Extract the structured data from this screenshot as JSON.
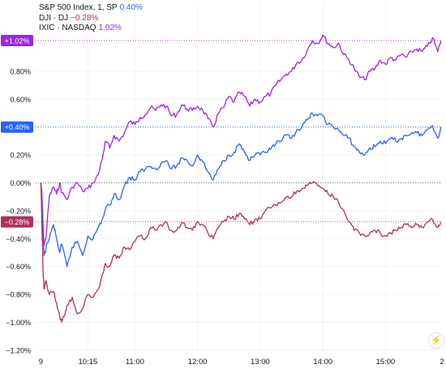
{
  "legend": [
    {
      "label": "S&P 500 Index, 1, SP",
      "value": "0.40%",
      "color": "#2962ff"
    },
    {
      "label": "DJI · DJ",
      "value": "−0.28%",
      "color": "#b0305e"
    },
    {
      "label": "IXIC · NASDAQ",
      "value": "1.02%",
      "color": "#9c27e0"
    }
  ],
  "badges": {
    "spx": "+0.40%",
    "dji": "−0.28%",
    "ixic": "+1.02%"
  },
  "zap_icon": "⚡",
  "chart_data": {
    "type": "line",
    "y_ticks": [
      "1.00%",
      "0.80%",
      "0.60%",
      "0.40%",
      "0.20%",
      "0.00%",
      "−0.20%",
      "−0.40%",
      "−0.60%",
      "−0.80%",
      "−1.00%",
      "−1.20%"
    ],
    "y_tick_values": [
      1.0,
      0.8,
      0.6,
      0.4,
      0.2,
      0.0,
      -0.2,
      -0.4,
      -0.6,
      -0.8,
      -1.0,
      -1.2
    ],
    "x_ticks": [
      "9",
      "10:15",
      "11:00",
      "12:00",
      "13:00",
      "14:00",
      "15:00",
      "2"
    ],
    "x_tick_minutes": [
      570,
      615,
      660,
      720,
      780,
      840,
      900,
      954
    ],
    "xlim_minutes": [
      565,
      954
    ],
    "ylim": [
      -1.22,
      1.22
    ],
    "baseline": 0.0,
    "grid": true,
    "series": [
      {
        "name": "IXIC · NASDAQ",
        "color": "#9c27e0",
        "last_value": 1.02,
        "x_minutes": [
          570,
          571,
          572,
          573,
          575,
          578,
          582,
          585,
          588,
          590,
          595,
          600,
          605,
          610,
          615,
          620,
          625,
          630,
          632,
          636,
          640,
          645,
          650,
          655,
          660,
          665,
          670,
          675,
          680,
          685,
          690,
          695,
          700,
          705,
          710,
          715,
          720,
          725,
          730,
          735,
          740,
          745,
          750,
          755,
          760,
          765,
          770,
          775,
          780,
          785,
          790,
          795,
          800,
          805,
          810,
          815,
          820,
          825,
          830,
          835,
          840,
          845,
          850,
          855,
          860,
          865,
          870,
          875,
          880,
          885,
          890,
          895,
          900,
          905,
          910,
          915,
          920,
          925,
          930,
          935,
          940,
          945,
          950,
          953
        ],
        "y": [
          0.0,
          -0.08,
          -0.28,
          -0.45,
          -0.38,
          -0.1,
          -0.03,
          -0.08,
          0.0,
          -0.07,
          -0.12,
          -0.03,
          0.0,
          -0.06,
          -0.04,
          0.0,
          0.06,
          0.22,
          0.3,
          0.25,
          0.34,
          0.3,
          0.36,
          0.44,
          0.42,
          0.47,
          0.49,
          0.54,
          0.52,
          0.56,
          0.55,
          0.48,
          0.49,
          0.56,
          0.53,
          0.52,
          0.55,
          0.52,
          0.46,
          0.4,
          0.5,
          0.54,
          0.62,
          0.58,
          0.65,
          0.62,
          0.55,
          0.6,
          0.58,
          0.62,
          0.64,
          0.7,
          0.74,
          0.78,
          0.8,
          0.86,
          0.88,
          0.95,
          1.02,
          1.0,
          1.06,
          1.0,
          0.97,
          1.0,
          0.92,
          0.88,
          0.82,
          0.76,
          0.74,
          0.8,
          0.82,
          0.88,
          0.85,
          0.9,
          0.88,
          0.92,
          0.9,
          0.94,
          0.96,
          0.94,
          0.98,
          1.04,
          0.94,
          1.02
        ]
      },
      {
        "name": "S&P 500 Index, 1, SP",
        "color": "#2962ff",
        "last_value": 0.4,
        "x_minutes": [
          570,
          571,
          572,
          573,
          575,
          578,
          582,
          585,
          588,
          590,
          595,
          600,
          605,
          610,
          615,
          620,
          625,
          630,
          632,
          636,
          640,
          645,
          650,
          655,
          660,
          665,
          670,
          675,
          680,
          685,
          690,
          695,
          700,
          705,
          710,
          715,
          720,
          725,
          730,
          735,
          740,
          745,
          750,
          755,
          760,
          765,
          770,
          775,
          780,
          785,
          790,
          795,
          800,
          805,
          810,
          815,
          820,
          825,
          830,
          835,
          840,
          845,
          850,
          855,
          860,
          865,
          870,
          875,
          880,
          885,
          890,
          895,
          900,
          905,
          910,
          915,
          920,
          925,
          930,
          935,
          940,
          945,
          950,
          953
        ],
        "y": [
          0.0,
          -0.15,
          -0.38,
          -0.52,
          -0.46,
          -0.4,
          -0.3,
          -0.4,
          -0.5,
          -0.44,
          -0.6,
          -0.46,
          -0.42,
          -0.52,
          -0.38,
          -0.4,
          -0.32,
          -0.24,
          -0.18,
          -0.16,
          -0.08,
          -0.12,
          -0.02,
          0.04,
          0.02,
          0.08,
          0.1,
          0.12,
          0.1,
          0.14,
          0.16,
          0.1,
          0.12,
          0.18,
          0.16,
          0.12,
          0.2,
          0.15,
          0.08,
          0.02,
          0.1,
          0.16,
          0.2,
          0.22,
          0.28,
          0.22,
          0.16,
          0.2,
          0.2,
          0.22,
          0.24,
          0.28,
          0.3,
          0.34,
          0.32,
          0.38,
          0.4,
          0.45,
          0.5,
          0.48,
          0.48,
          0.42,
          0.4,
          0.38,
          0.34,
          0.32,
          0.26,
          0.22,
          0.2,
          0.25,
          0.26,
          0.3,
          0.28,
          0.32,
          0.3,
          0.32,
          0.34,
          0.36,
          0.36,
          0.34,
          0.38,
          0.41,
          0.32,
          0.4
        ]
      },
      {
        "name": "DJI · DJ",
        "color": "#b0305e",
        "last_value": -0.28,
        "x_minutes": [
          570,
          571,
          572,
          573,
          575,
          578,
          582,
          585,
          588,
          590,
          595,
          600,
          605,
          610,
          615,
          620,
          625,
          630,
          632,
          636,
          640,
          645,
          650,
          655,
          660,
          665,
          670,
          675,
          680,
          685,
          690,
          695,
          700,
          705,
          710,
          715,
          720,
          725,
          730,
          735,
          740,
          745,
          750,
          755,
          760,
          765,
          770,
          775,
          780,
          785,
          790,
          795,
          800,
          805,
          810,
          815,
          820,
          825,
          830,
          835,
          840,
          845,
          850,
          855,
          860,
          865,
          870,
          875,
          880,
          885,
          890,
          895,
          900,
          905,
          910,
          915,
          920,
          925,
          930,
          935,
          940,
          945,
          950,
          953
        ],
        "y": [
          0.0,
          -0.3,
          -0.62,
          -0.76,
          -0.7,
          -0.8,
          -0.78,
          -0.86,
          -0.96,
          -1.0,
          -0.88,
          -0.82,
          -0.94,
          -0.9,
          -0.8,
          -0.82,
          -0.76,
          -0.64,
          -0.58,
          -0.6,
          -0.52,
          -0.54,
          -0.46,
          -0.48,
          -0.42,
          -0.38,
          -0.4,
          -0.32,
          -0.34,
          -0.3,
          -0.28,
          -0.34,
          -0.34,
          -0.28,
          -0.32,
          -0.34,
          -0.28,
          -0.3,
          -0.36,
          -0.4,
          -0.32,
          -0.28,
          -0.24,
          -0.26,
          -0.22,
          -0.26,
          -0.3,
          -0.26,
          -0.26,
          -0.2,
          -0.18,
          -0.16,
          -0.14,
          -0.1,
          -0.1,
          -0.06,
          -0.04,
          -0.02,
          0.0,
          -0.02,
          -0.04,
          -0.08,
          -0.1,
          -0.14,
          -0.2,
          -0.28,
          -0.34,
          -0.36,
          -0.38,
          -0.36,
          -0.34,
          -0.36,
          -0.38,
          -0.36,
          -0.34,
          -0.32,
          -0.3,
          -0.32,
          -0.3,
          -0.32,
          -0.28,
          -0.26,
          -0.32,
          -0.28
        ]
      }
    ]
  }
}
